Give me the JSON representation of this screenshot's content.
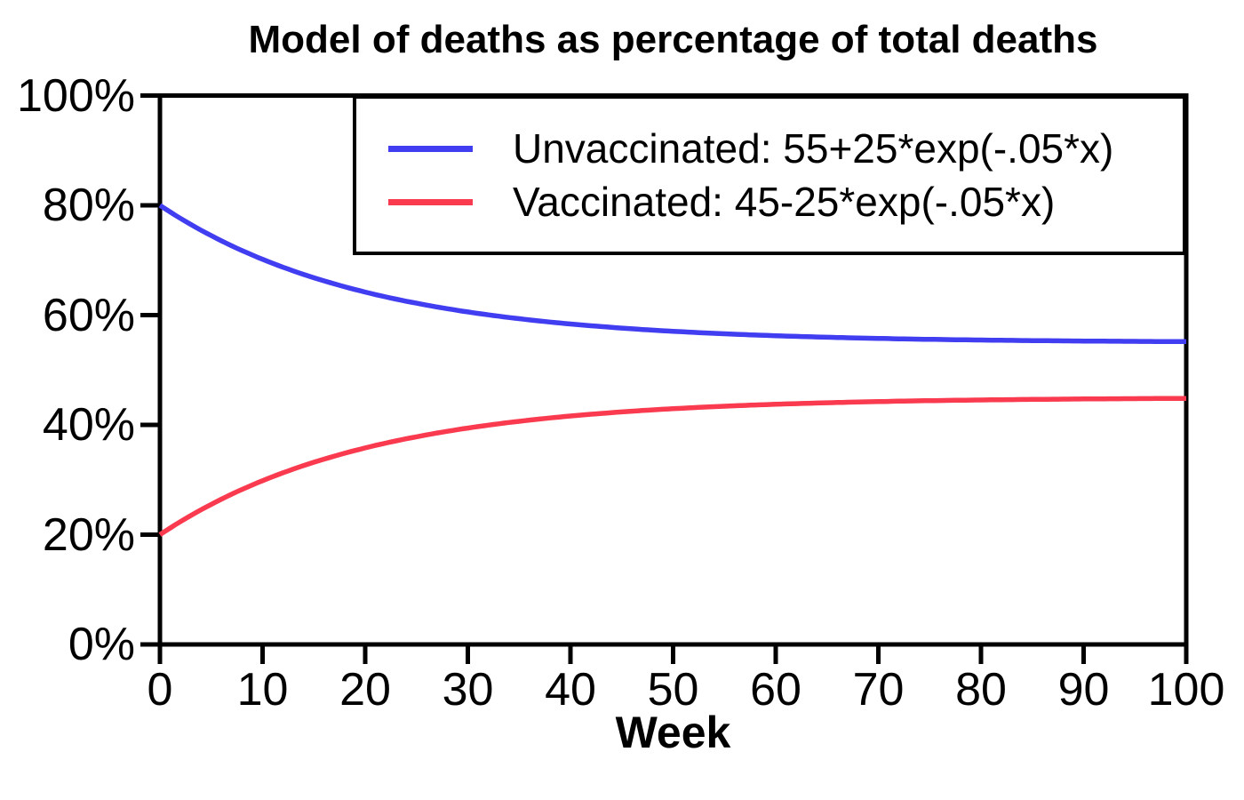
{
  "chart_data": {
    "type": "line",
    "title": "Model of deaths as percentage of total deaths",
    "xlabel": "Week",
    "ylabel": "",
    "xlim": [
      0,
      100
    ],
    "ylim": [
      0,
      100
    ],
    "grid": false,
    "legend_position": "top-right-inside",
    "frame": true,
    "x_ticks": [
      0,
      10,
      20,
      30,
      40,
      50,
      60,
      70,
      80,
      90,
      100
    ],
    "y_ticks": [
      0,
      20,
      40,
      60,
      80,
      100
    ],
    "y_tick_labels": [
      "0%",
      "20%",
      "40%",
      "60%",
      "80%",
      "100%"
    ],
    "axis_color": "#000000",
    "series": [
      {
        "name": "unvaccinated",
        "legend": "Unvaccinated: 55+25*exp(-.05*x)",
        "color": "#413df0",
        "model": {
          "base": 55,
          "coef": 25,
          "rate": -0.05
        },
        "x": [
          0,
          10,
          20,
          30,
          40,
          50,
          60,
          70,
          80,
          90,
          100
        ],
        "y": [
          80,
          70.16,
          64.2,
          60.58,
          58.38,
          57.05,
          56.24,
          55.75,
          55.46,
          55.28,
          55.17
        ]
      },
      {
        "name": "vaccinated",
        "legend": "Vaccinated: 45-25*exp(-.05*x)",
        "color": "#fa3a4e",
        "model": {
          "base": 45,
          "coef": -25,
          "rate": -0.05
        },
        "x": [
          0,
          10,
          20,
          30,
          40,
          50,
          60,
          70,
          80,
          90,
          100
        ],
        "y": [
          20,
          29.84,
          35.8,
          39.42,
          41.62,
          42.95,
          43.76,
          44.25,
          44.54,
          44.72,
          44.83
        ]
      }
    ]
  }
}
